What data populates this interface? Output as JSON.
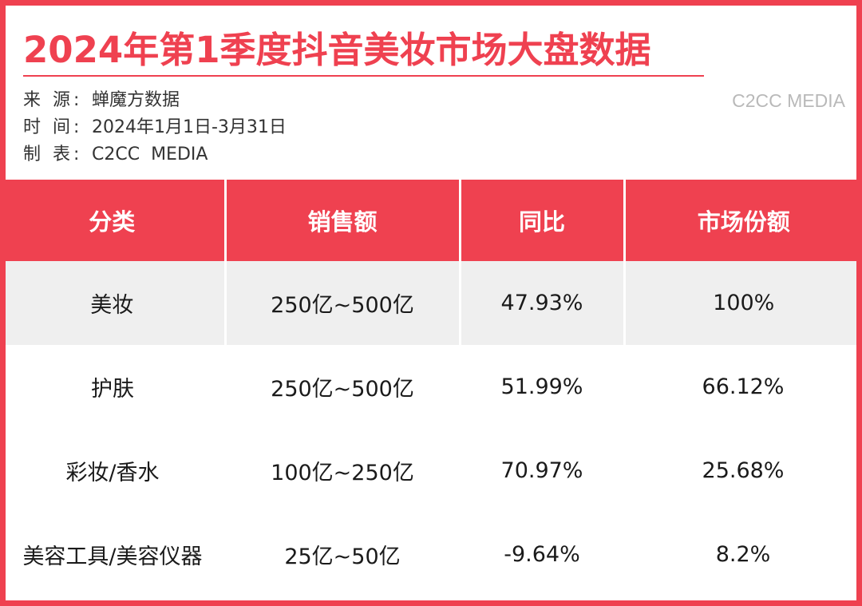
{
  "title": "2024年第1季度抖音美妆市场大盘数据",
  "meta": {
    "source_label": "来 源:",
    "source_value": "蝉魔方数据",
    "time_label": "时 间:",
    "time_value": "2024年1月1日-3月31日",
    "maker_label": "制 表:",
    "maker_value": "C2CC  MEDIA"
  },
  "watermark": "C2CC MEDIA",
  "table": {
    "headers": [
      "分类",
      "销售额",
      "同比",
      "市场份额"
    ],
    "rows": [
      [
        "美妆",
        "250亿~500亿",
        "47.93%",
        "100%"
      ],
      [
        "护肤",
        "250亿~500亿",
        "51.99%",
        "66.12%"
      ],
      [
        "彩妆/香水",
        "100亿~250亿",
        "70.97%",
        "25.68%"
      ],
      [
        "美容工具/美容仪器",
        "25亿~50亿",
        "-9.64%",
        "8.2%"
      ]
    ]
  },
  "colors": {
    "accent": "#ef4150",
    "row_shade": "#efefef",
    "watermark": "#b9b9b9"
  }
}
